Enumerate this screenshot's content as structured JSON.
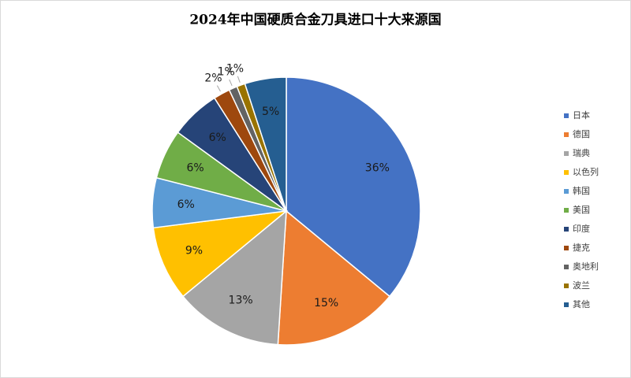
{
  "chart_data": {
    "type": "pie",
    "title": "2024年中国硬质合金刀具进口十大来源国",
    "categories": [
      "日本",
      "德国",
      "瑞典",
      "以色列",
      "韩国",
      "美国",
      "印度",
      "捷克",
      "奥地利",
      "波兰",
      "其他"
    ],
    "values": [
      36,
      15,
      13,
      9,
      6,
      6,
      6,
      2,
      1,
      1,
      5
    ],
    "value_labels": [
      "36%",
      "15%",
      "13%",
      "9%",
      "6%",
      "6%",
      "6%",
      "2%",
      "1%",
      "1%",
      "5%"
    ],
    "colors": [
      "#4472c4",
      "#ed7d31",
      "#a5a5a5",
      "#ffc000",
      "#5b9bd5",
      "#70ad47",
      "#264478",
      "#9e480e",
      "#636363",
      "#997300",
      "#255e91"
    ],
    "legend": "right"
  }
}
